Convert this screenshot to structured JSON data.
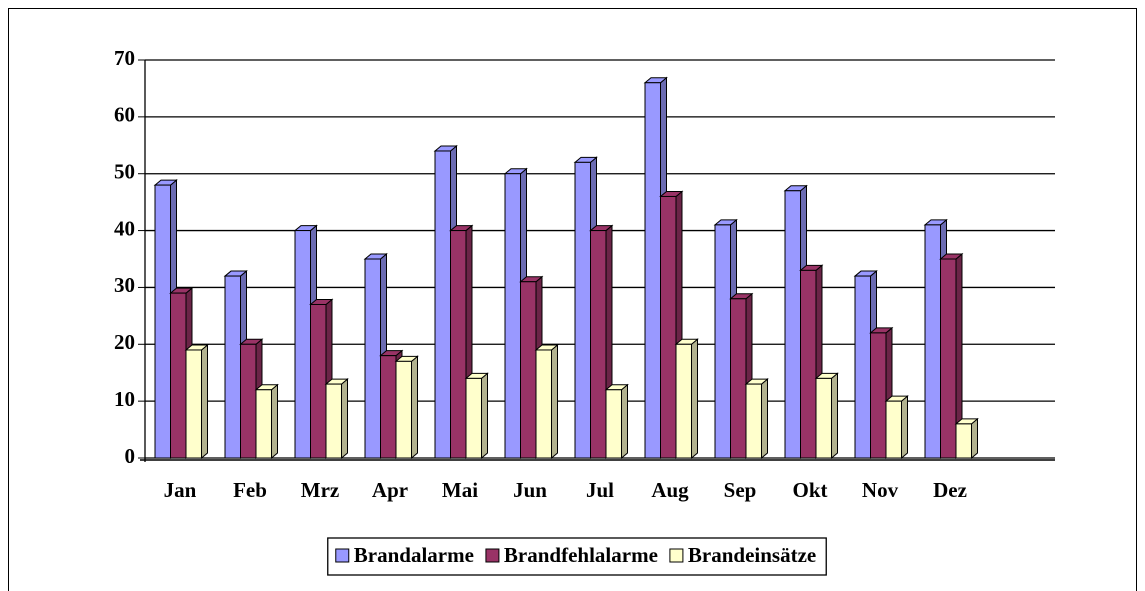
{
  "chart_data": {
    "type": "bar",
    "categories": [
      "Jan",
      "Feb",
      "Mrz",
      "Apr",
      "Mai",
      "Jun",
      "Jul",
      "Aug",
      "Sep",
      "Okt",
      "Nov",
      "Dez"
    ],
    "series": [
      {
        "name": "Brandalarme",
        "color": "#9999ff",
        "values": [
          48,
          32,
          40,
          35,
          54,
          50,
          52,
          66,
          41,
          47,
          32,
          41
        ]
      },
      {
        "name": "Brandfehlalarme",
        "color": "#993366",
        "values": [
          29,
          20,
          27,
          18,
          40,
          31,
          40,
          46,
          28,
          33,
          22,
          35
        ]
      },
      {
        "name": "Brandeinsätze",
        "color": "#ffffcc",
        "values": [
          19,
          12,
          13,
          17,
          14,
          19,
          12,
          20,
          13,
          14,
          10,
          6
        ]
      }
    ],
    "ylim": [
      0,
      70
    ],
    "yticks": [
      0,
      10,
      20,
      30,
      40,
      50,
      60,
      70
    ],
    "grid": true,
    "legend": "bottom"
  }
}
